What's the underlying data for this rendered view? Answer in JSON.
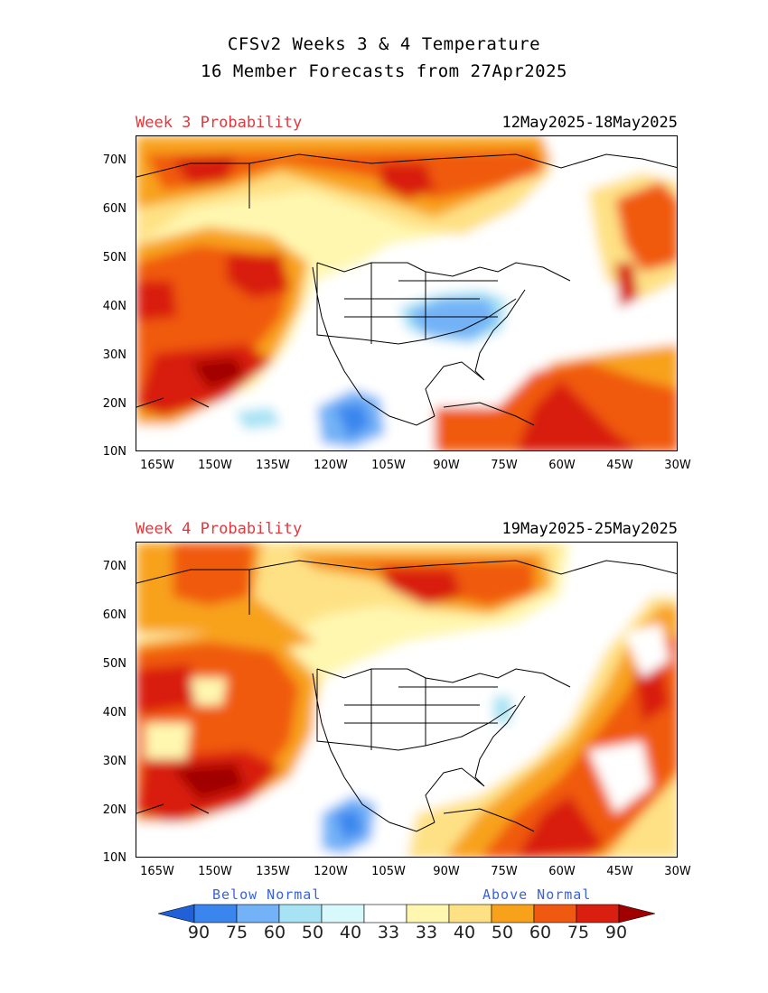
{
  "title": {
    "line1": "CFSv2 Weeks 3 & 4 Temperature",
    "line2": "16 Member Forecasts from 27Apr2025"
  },
  "panels": [
    {
      "week_label": "Week 3 Probability",
      "date_range": "12May2025-18May2025"
    },
    {
      "week_label": "Week 4 Probability",
      "date_range": "19May2025-25May2025"
    }
  ],
  "axes": {
    "lat_labels": [
      "70N",
      "60N",
      "50N",
      "40N",
      "30N",
      "20N",
      "10N"
    ],
    "lon_labels": [
      "165W",
      "150W",
      "135W",
      "120W",
      "105W",
      "90W",
      "75W",
      "60W",
      "45W",
      "30W"
    ]
  },
  "legend": {
    "below_label": "Below Normal",
    "above_label": "Above Normal",
    "values": [
      "90",
      "75",
      "60",
      "50",
      "40",
      "33",
      "33",
      "40",
      "50",
      "60",
      "75",
      "90"
    ],
    "colors": [
      "#2060d8",
      "#3b86ee",
      "#73b2f7",
      "#a7e3f4",
      "#d8f9fb",
      "#ffffff",
      "#fff7b0",
      "#fee185",
      "#f8a21c",
      "#f05a10",
      "#d81f10",
      "#a00000"
    ]
  },
  "colors": {
    "week_label": "#e0393e",
    "legend_caption": "#3a63d6"
  }
}
